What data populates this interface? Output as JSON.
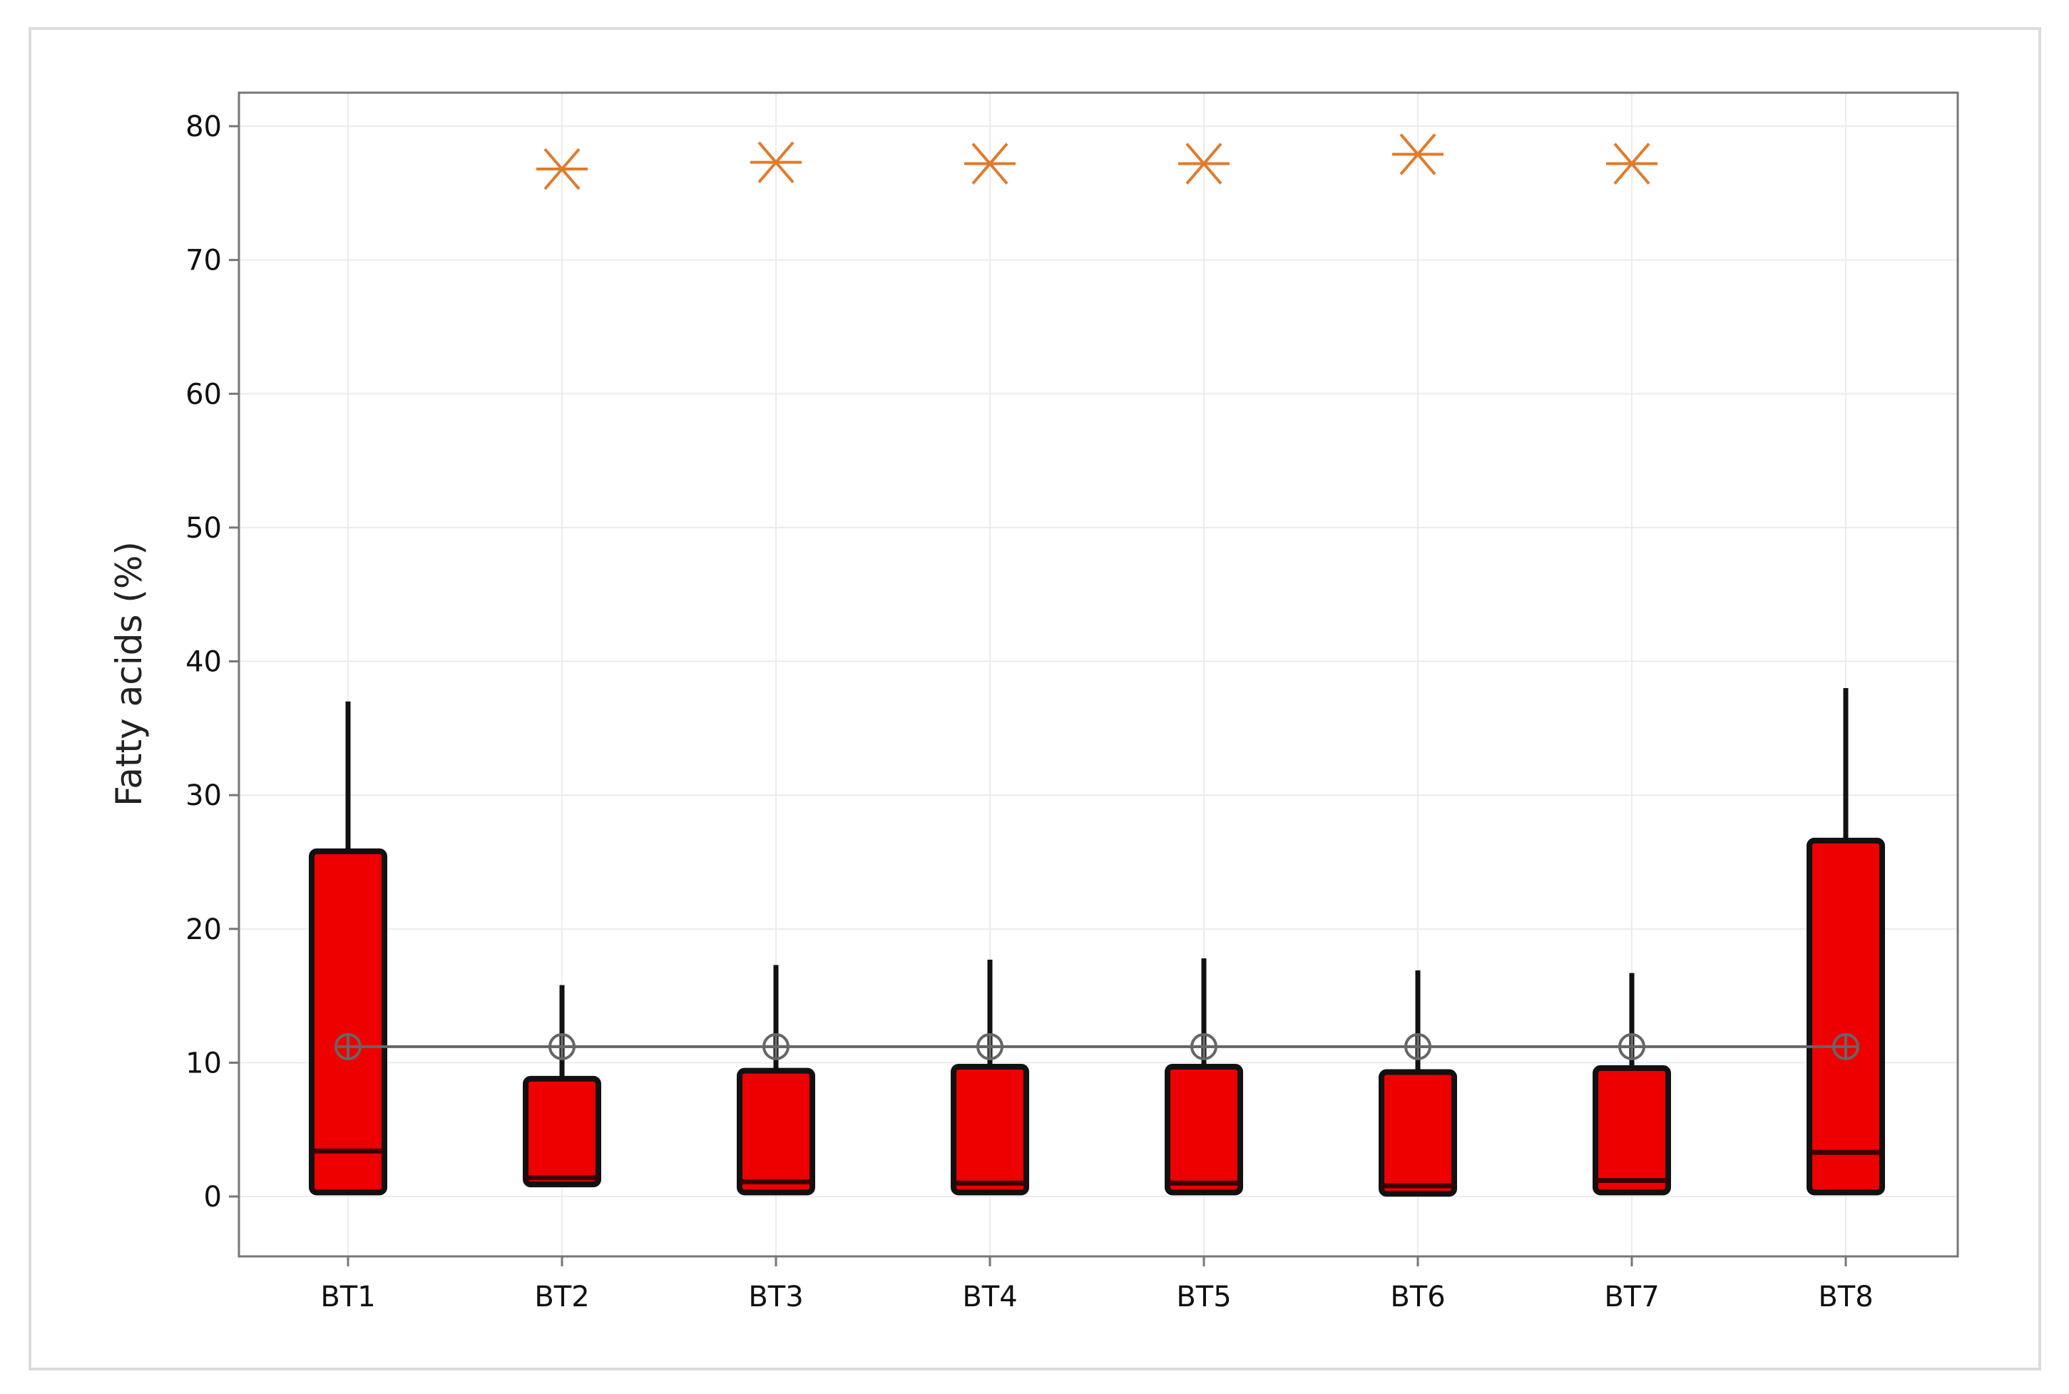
{
  "chart_data": {
    "type": "box",
    "ylabel": "Fatty acids (%)",
    "xlabel": "",
    "ylim": [
      -4.5,
      82.5
    ],
    "yticks": [
      0,
      10,
      20,
      30,
      40,
      50,
      60,
      70,
      80
    ],
    "grid": true,
    "categories": [
      "BT1",
      "BT2",
      "BT3",
      "BT4",
      "BT5",
      "BT6",
      "BT7",
      "BT8"
    ],
    "boxes": [
      {
        "category": "BT1",
        "min": 0.3,
        "q1": 0.3,
        "median": 3.4,
        "q3": 25.8,
        "max": 37.0
      },
      {
        "category": "BT2",
        "min": 0.7,
        "q1": 0.9,
        "median": 1.4,
        "q3": 8.8,
        "max": 15.8
      },
      {
        "category": "BT3",
        "min": 0.3,
        "q1": 0.3,
        "median": 1.1,
        "q3": 9.4,
        "max": 17.3
      },
      {
        "category": "BT4",
        "min": 0.3,
        "q1": 0.3,
        "median": 1.0,
        "q3": 9.7,
        "max": 17.7
      },
      {
        "category": "BT5",
        "min": 0.3,
        "q1": 0.3,
        "median": 1.0,
        "q3": 9.7,
        "max": 17.8
      },
      {
        "category": "BT6",
        "min": 0.2,
        "q1": 0.2,
        "median": 0.8,
        "q3": 9.3,
        "max": 16.9
      },
      {
        "category": "BT7",
        "min": 0.3,
        "q1": 0.3,
        "median": 1.2,
        "q3": 9.6,
        "max": 16.7
      },
      {
        "category": "BT8",
        "min": 0.3,
        "q1": 0.3,
        "median": 3.3,
        "q3": 26.6,
        "max": 38.0
      }
    ],
    "mean": [
      11.2,
      11.2,
      11.2,
      11.2,
      11.2,
      11.2,
      11.2,
      11.2
    ],
    "outliers": [
      {
        "category": "BT2",
        "value": 76.8
      },
      {
        "category": "BT3",
        "value": 77.3
      },
      {
        "category": "BT4",
        "value": 77.2
      },
      {
        "category": "BT5",
        "value": 77.2
      },
      {
        "category": "BT6",
        "value": 77.9
      },
      {
        "category": "BT7",
        "value": 77.2
      }
    ],
    "colors": {
      "box_fill": "#ee0000",
      "box_edge": "#111111",
      "outlier": "#e07b2c",
      "mean": "#666666",
      "grid": "#ececec",
      "frame": "#777777"
    }
  }
}
